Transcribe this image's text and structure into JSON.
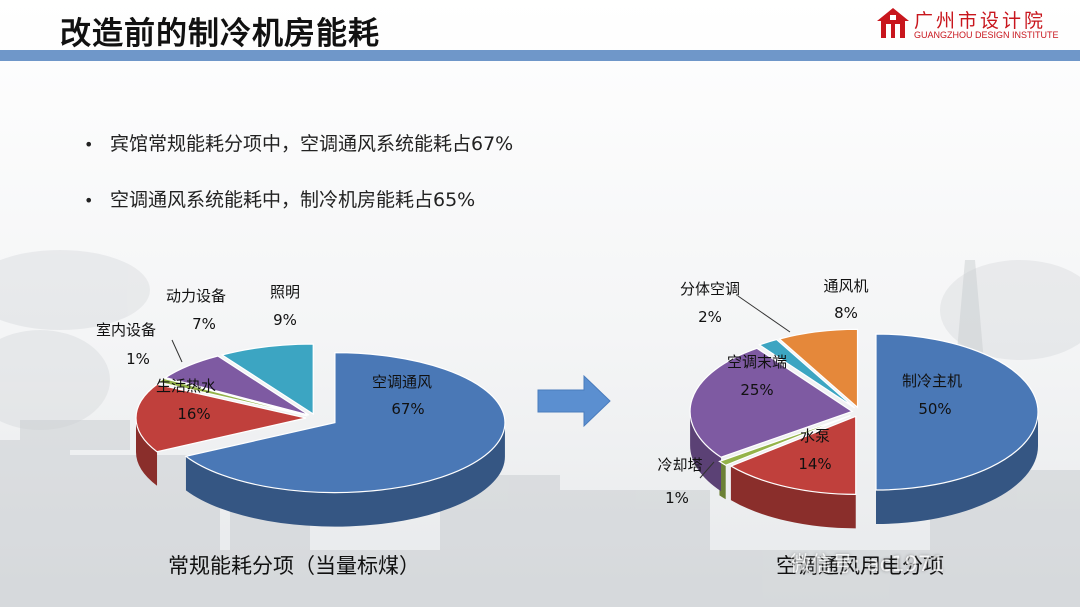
{
  "header": {
    "title": "改造前的制冷机房能耗",
    "logo_name": "广州市设计院",
    "logo_sub": "GUANGZHOU DESIGN INSTITUTE"
  },
  "bullets": [
    "宾馆常规能耗分项中，空调通风系统能耗占67%",
    "空调通风系统能耗中，制冷机房能耗占65%"
  ],
  "bullet_symbol": "•",
  "watermark": "微信号: ac1971",
  "colors": {
    "header_bar": "#6f97c9",
    "logo_red": "#c8161d",
    "arrow": "#5b8fd0"
  },
  "chart_data": [
    {
      "type": "pie",
      "title": "",
      "caption": "常规能耗分项（当量标煤）",
      "slices": [
        {
          "label": "空调通风",
          "value": 67,
          "display": "67%",
          "color": "#4a78b6"
        },
        {
          "label": "生活热水",
          "value": 16,
          "display": "16%",
          "color": "#c0403c"
        },
        {
          "label": "室内设备",
          "value": 1,
          "display": "1%",
          "color": "#94b34a"
        },
        {
          "label": "动力设备",
          "value": 7,
          "display": "7%",
          "color": "#7e5aa2"
        },
        {
          "label": "照明",
          "value": 9,
          "display": "9%",
          "color": "#3ca5c2"
        }
      ]
    },
    {
      "type": "pie",
      "title": "",
      "caption": "空调通风用电分项",
      "slices": [
        {
          "label": "制冷主机",
          "value": 50,
          "display": "50%",
          "color": "#4a78b6"
        },
        {
          "label": "水泵",
          "value": 14,
          "display": "14%",
          "color": "#c0403c"
        },
        {
          "label": "冷却塔",
          "value": 1,
          "display": "1%",
          "color": "#94b34a"
        },
        {
          "label": "空调末端",
          "value": 25,
          "display": "25%",
          "color": "#7e5aa2"
        },
        {
          "label": "分体空调",
          "value": 2,
          "display": "2%",
          "color": "#3ca5c2"
        },
        {
          "label": "通风机",
          "value": 8,
          "display": "8%",
          "color": "#e5883a"
        }
      ]
    }
  ]
}
